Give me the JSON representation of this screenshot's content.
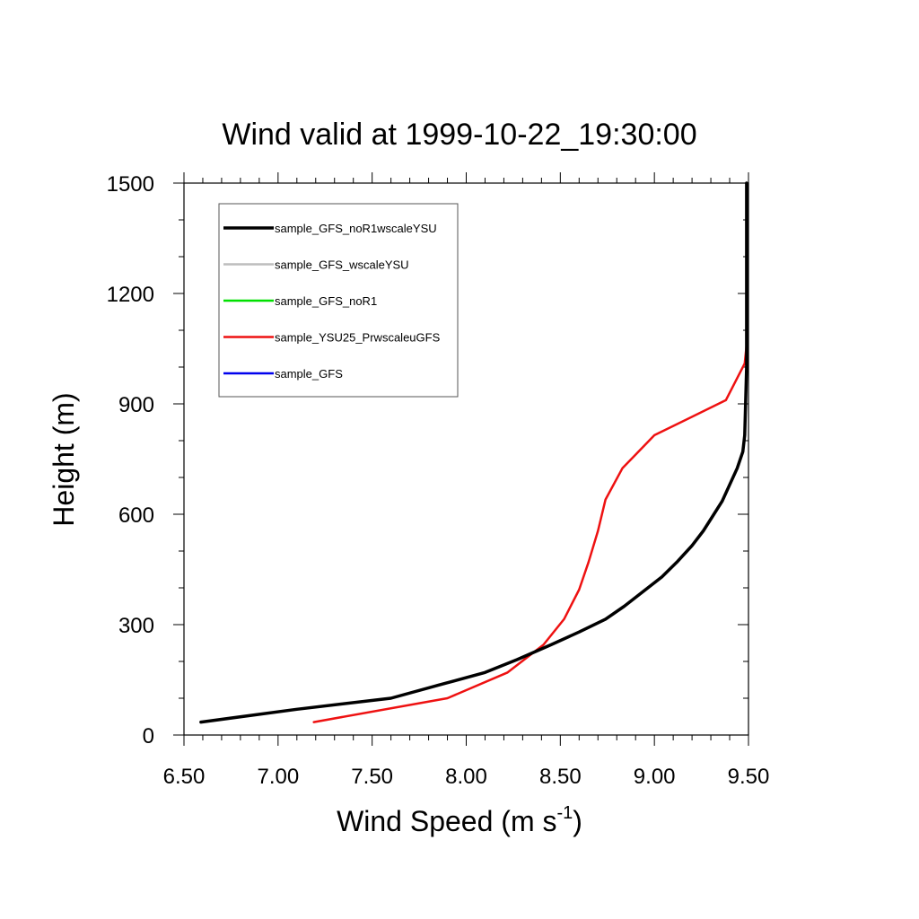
{
  "chart_data": {
    "type": "line",
    "title": "Wind valid at 1999-10-22_19:30:00",
    "xlabel": "Wind Speed (m s",
    "xlabel_sup": "-1",
    "xlabel_end": ")",
    "ylabel": "Height (m)",
    "xlim": [
      6.5,
      9.5
    ],
    "ylim": [
      0,
      1500
    ],
    "xticks": [
      "6.50",
      "7.00",
      "7.50",
      "8.00",
      "8.50",
      "9.00",
      "9.50"
    ],
    "yticks": [
      "0",
      "300",
      "600",
      "900",
      "1200",
      "1500"
    ],
    "grid": false,
    "legend_position": "top-left",
    "series": [
      {
        "name": "sample_GFS_noR1wscaleYSU",
        "color": "#000000",
        "x": [
          6.59,
          7.1,
          7.6,
          7.85,
          8.1,
          8.27,
          8.45,
          8.6,
          8.74,
          8.84,
          8.94,
          9.04,
          9.12,
          9.2,
          9.26,
          9.31,
          9.36,
          9.4,
          9.44,
          9.47,
          9.48,
          9.49,
          9.49,
          9.49
        ],
        "y": [
          35,
          70,
          100,
          135,
          170,
          205,
          245,
          280,
          315,
          350,
          390,
          430,
          470,
          515,
          555,
          595,
          635,
          680,
          725,
          770,
          815,
          1000,
          1250,
          1500
        ]
      },
      {
        "name": "sample_GFS_wscaleYSU",
        "color": "#bdbdbd",
        "x": [
          6.59,
          7.1,
          7.6,
          7.85,
          8.1,
          8.27,
          8.45,
          8.6,
          8.74,
          8.84,
          8.94,
          9.04,
          9.12,
          9.2,
          9.26,
          9.31,
          9.36,
          9.4,
          9.44,
          9.47,
          9.48,
          9.49,
          9.49,
          9.49
        ],
        "y": [
          35,
          70,
          100,
          135,
          170,
          205,
          245,
          280,
          315,
          350,
          390,
          430,
          470,
          515,
          555,
          595,
          635,
          680,
          725,
          770,
          815,
          1000,
          1250,
          1500
        ]
      },
      {
        "name": "sample_GFS_noR1",
        "color": "#00e000",
        "x": [
          6.59,
          7.1,
          7.6,
          7.85,
          8.1,
          8.27,
          8.45,
          8.6,
          8.74,
          8.84,
          8.94,
          9.04,
          9.12,
          9.2,
          9.26,
          9.31,
          9.36,
          9.4,
          9.44,
          9.47,
          9.48,
          9.49,
          9.49,
          9.49
        ],
        "y": [
          35,
          70,
          100,
          135,
          170,
          205,
          245,
          280,
          315,
          350,
          390,
          430,
          470,
          515,
          555,
          595,
          635,
          680,
          725,
          770,
          815,
          1000,
          1250,
          1500
        ]
      },
      {
        "name": "sample_YSU25_PrwscaleuGFS",
        "color": "#ee1111",
        "x": [
          7.19,
          7.9,
          8.22,
          8.41,
          8.52,
          8.6,
          8.65,
          8.7,
          8.74,
          8.83,
          9.0,
          9.38,
          9.48,
          9.49
        ],
        "y": [
          35,
          100,
          170,
          245,
          315,
          395,
          470,
          555,
          640,
          725,
          815,
          910,
          1010,
          1060
        ]
      },
      {
        "name": "sample_GFS",
        "color": "#0000ee",
        "x": [],
        "y": []
      }
    ]
  }
}
